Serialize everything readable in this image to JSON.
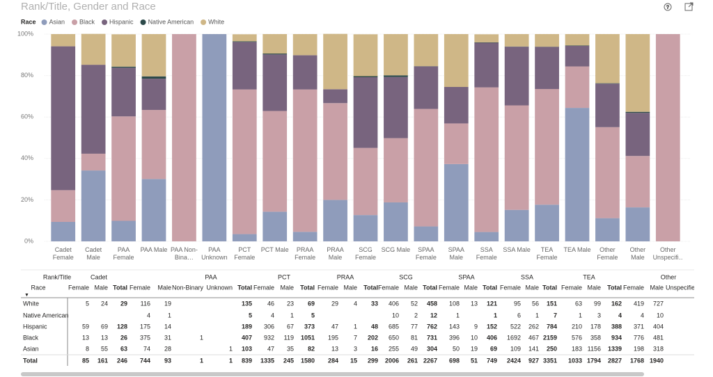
{
  "chart_data": {
    "type": "stacked_bar_100",
    "title": "Rank/Title, Gender and Race",
    "legend_title": "Race",
    "legend_position": "top-left",
    "grid": true,
    "categories": [
      "Cadet Female",
      "Cadet Male",
      "PAA Female",
      "PAA Male",
      "PAA Non-Bina…",
      "PAA Unknown",
      "PCT Female",
      "PCT Male",
      "PRAA Female",
      "PRAA Male",
      "SCG Female",
      "SCG Male",
      "SPAA Female",
      "SPAA Male",
      "SSA Female",
      "SSA Male",
      "TEA Female",
      "TEA Male",
      "Other Female",
      "Other Male",
      "Other Unspecifi…"
    ],
    "ylim": [
      0,
      100
    ],
    "yticks": [
      {
        "value": 0,
        "label": "0%"
      },
      {
        "value": 20,
        "label": "20%"
      },
      {
        "value": 40,
        "label": "40%"
      },
      {
        "value": 60,
        "label": "60%"
      },
      {
        "value": 80,
        "label": "80%"
      },
      {
        "value": 100,
        "label": "100%"
      }
    ],
    "series": [
      {
        "name": "Asian",
        "color": "#8f9cbb",
        "values": [
          9.4,
          34.2,
          9.9,
          30.1,
          null,
          100,
          3.5,
          14.3,
          4.6,
          20,
          12.7,
          18.8,
          7.2,
          37.3,
          4.5,
          15.2,
          17.7,
          64.4,
          11.2,
          16.4,
          null
        ]
      },
      {
        "name": "Black",
        "color": "#c9a0a7",
        "values": [
          15.3,
          8.1,
          50.4,
          33.3,
          100,
          null,
          69.8,
          48.6,
          68.7,
          46.7,
          32.4,
          31.0,
          56.7,
          19.6,
          69.8,
          50.4,
          55.8,
          20.0,
          43.9,
          24.8,
          100
        ]
      },
      {
        "name": "Hispanic",
        "color": "#78647e",
        "values": [
          69.4,
          42.9,
          23.5,
          15.1,
          null,
          null,
          22.9,
          27.3,
          16.5,
          6.7,
          34.1,
          29.5,
          20.5,
          17.6,
          21.5,
          28.3,
          20.3,
          9.9,
          21.0,
          20.8,
          null
        ]
      },
      {
        "name": "Native American",
        "color": "#2d4a4a",
        "values": [
          null,
          null,
          0.5,
          1.1,
          null,
          null,
          0.3,
          0.4,
          null,
          null,
          0.5,
          0.8,
          0.1,
          null,
          0.2,
          0.1,
          0.1,
          0.2,
          0.2,
          0.5,
          null
        ]
      },
      {
        "name": "White",
        "color": "#cfb787",
        "values": [
          5.9,
          14.9,
          15.6,
          20.4,
          null,
          null,
          3.4,
          9.4,
          10.2,
          26.7,
          20.2,
          19.9,
          15.5,
          25.5,
          3.9,
          6.0,
          6.1,
          5.5,
          23.7,
          37.5,
          null
        ]
      }
    ]
  },
  "table": {
    "corner": [
      "Rank/Title",
      "Race"
    ],
    "groups": [
      "Cadet",
      "PAA",
      "PCT",
      "PRAA",
      "SCG",
      "SPAA",
      "SSA",
      "TEA",
      "Other"
    ],
    "columns": [
      "Female",
      "Male",
      "Total",
      "Female",
      "Male",
      "Non-Binary",
      "Unknown",
      "Total",
      "Female",
      "Male",
      "Total",
      "Female",
      "Male",
      "Total",
      "Female",
      "Male",
      "Total",
      "Female",
      "Male",
      "Total",
      "Female",
      "Male",
      "Total",
      "Female",
      "Male",
      "Total",
      "Female",
      "Male",
      "Unspecified"
    ],
    "rows": [
      {
        "label": "White",
        "cells": [
          5,
          24,
          29,
          116,
          19,
          null,
          null,
          135,
          46,
          23,
          69,
          29,
          4,
          33,
          406,
          52,
          458,
          108,
          13,
          121,
          95,
          56,
          151,
          63,
          99,
          162,
          419,
          727,
          null
        ]
      },
      {
        "label": "Native American",
        "cells": [
          null,
          null,
          null,
          4,
          1,
          null,
          null,
          5,
          4,
          1,
          5,
          null,
          null,
          null,
          10,
          2,
          12,
          1,
          null,
          1,
          6,
          1,
          7,
          1,
          3,
          4,
          4,
          10,
          null
        ]
      },
      {
        "label": "Hispanic",
        "cells": [
          59,
          69,
          128,
          175,
          14,
          null,
          null,
          189,
          306,
          67,
          373,
          47,
          1,
          48,
          685,
          77,
          762,
          143,
          9,
          152,
          522,
          262,
          784,
          210,
          178,
          388,
          371,
          404,
          null
        ]
      },
      {
        "label": "Black",
        "cells": [
          13,
          13,
          26,
          375,
          31,
          1,
          null,
          407,
          932,
          119,
          1051,
          195,
          7,
          202,
          650,
          81,
          731,
          396,
          10,
          406,
          1692,
          467,
          2159,
          576,
          358,
          934,
          776,
          481,
          null
        ]
      },
      {
        "label": "Asian",
        "cells": [
          8,
          55,
          63,
          74,
          28,
          null,
          1,
          103,
          47,
          35,
          82,
          13,
          3,
          16,
          255,
          49,
          304,
          50,
          19,
          69,
          109,
          141,
          250,
          183,
          1156,
          1339,
          198,
          318,
          null
        ]
      },
      {
        "label": "Total",
        "cells": [
          85,
          161,
          246,
          744,
          93,
          1,
          1,
          839,
          1335,
          245,
          1580,
          284,
          15,
          299,
          2006,
          261,
          2267,
          698,
          51,
          749,
          2424,
          927,
          3351,
          1033,
          1794,
          2827,
          1768,
          1940,
          null
        ]
      }
    ]
  }
}
